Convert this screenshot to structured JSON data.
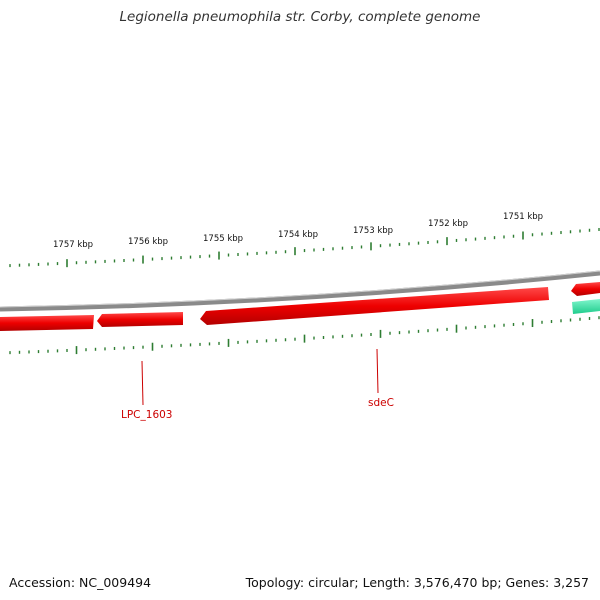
{
  "title": "Legionella pneumophila str. Corby, complete genome",
  "accession_text": "Accession: NC_009494",
  "topology_text": "Topology: circular; Length: 3,576,470 bp; Genes: 3,257",
  "colors": {
    "backbone": "#7a7a7a",
    "gene_forward": "#ff1a1a",
    "gene_reverse": "#ff1a1a",
    "gene_other": "#33e0a0",
    "tick": "#2e7d32",
    "label": "#cc0000"
  },
  "ruler_labels": [
    "1757 kbp",
    "1756 kbp",
    "1755 kbp",
    "1754 kbp",
    "1753 kbp",
    "1752 kbp",
    "1751 kbp"
  ],
  "gene_labels": [
    "LPC_1603",
    "sdeC"
  ]
}
